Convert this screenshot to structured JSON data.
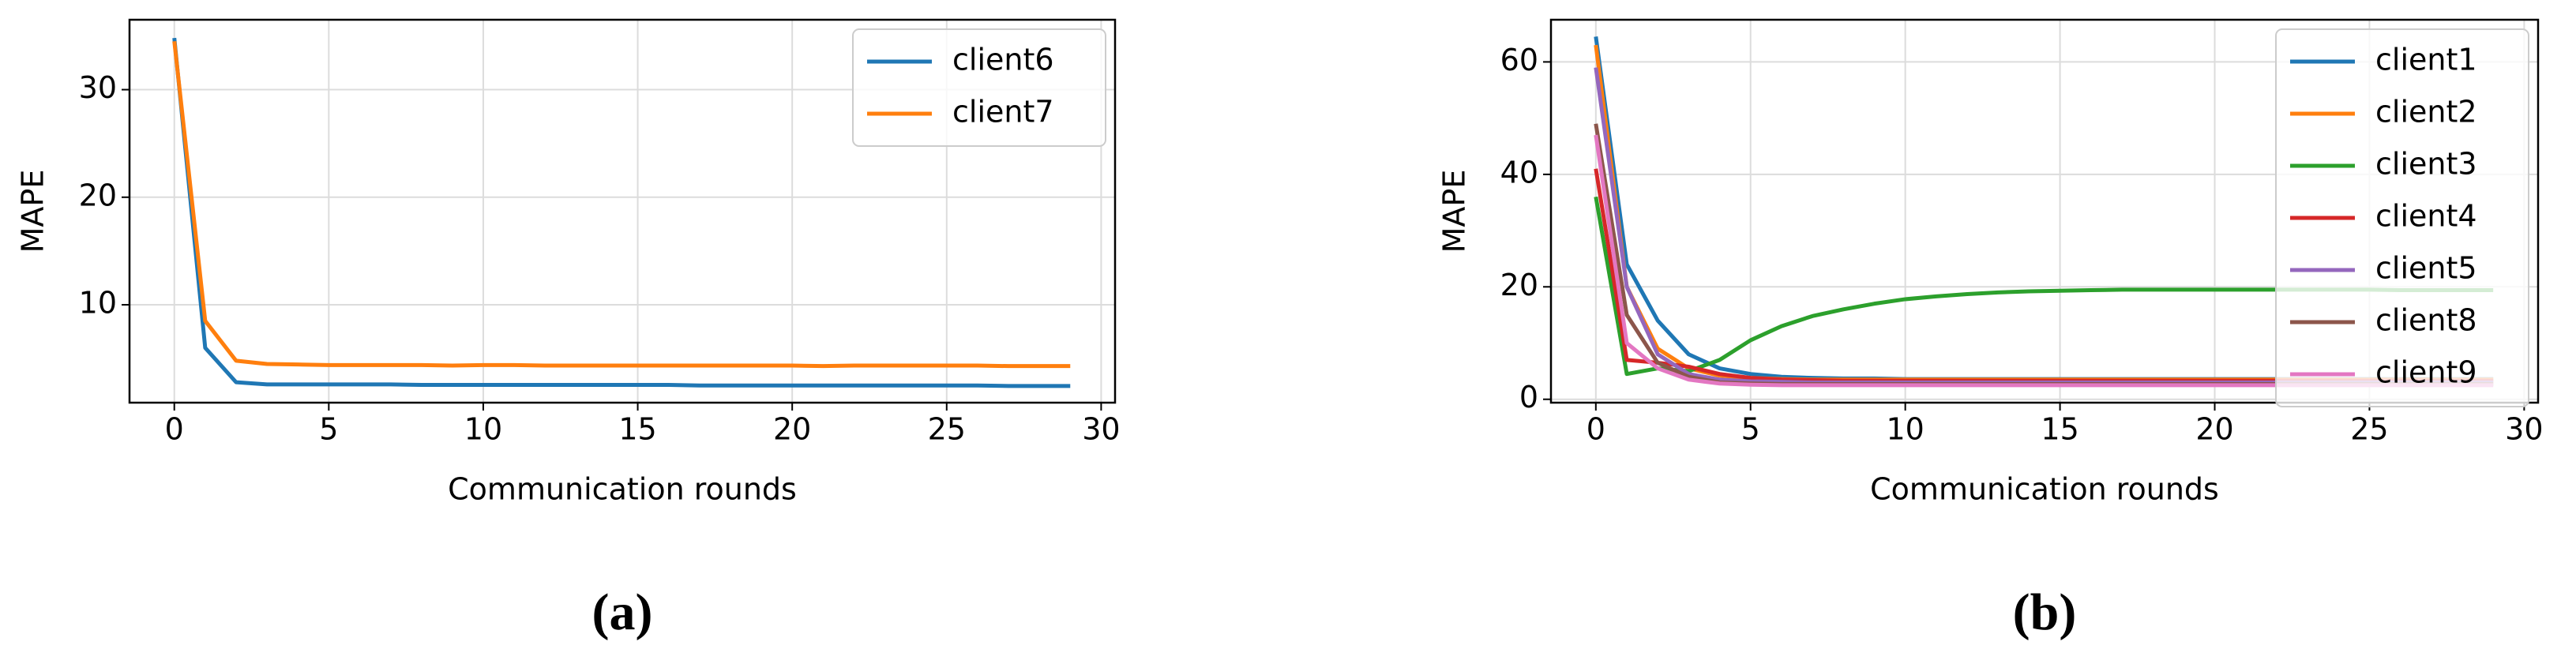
{
  "chart_data": [
    {
      "type": "line",
      "caption": "(a)",
      "xlabel": "Communication rounds",
      "ylabel": "MAPE",
      "x": [
        0,
        1,
        2,
        3,
        4,
        5,
        6,
        7,
        8,
        9,
        10,
        11,
        12,
        13,
        14,
        15,
        16,
        17,
        18,
        19,
        20,
        21,
        22,
        23,
        24,
        25,
        26,
        27,
        28,
        29
      ],
      "series": [
        {
          "name": "client6",
          "color": "#1f77b4",
          "values": [
            34.8,
            6.0,
            2.8,
            2.6,
            2.6,
            2.6,
            2.6,
            2.6,
            2.55,
            2.55,
            2.55,
            2.55,
            2.55,
            2.55,
            2.55,
            2.55,
            2.55,
            2.5,
            2.5,
            2.5,
            2.5,
            2.5,
            2.5,
            2.5,
            2.5,
            2.5,
            2.5,
            2.45,
            2.45,
            2.45
          ]
        },
        {
          "name": "client7",
          "color": "#ff7f0e",
          "values": [
            34.5,
            8.5,
            4.8,
            4.5,
            4.45,
            4.4,
            4.4,
            4.4,
            4.4,
            4.35,
            4.4,
            4.4,
            4.35,
            4.35,
            4.35,
            4.35,
            4.35,
            4.35,
            4.35,
            4.35,
            4.35,
            4.3,
            4.35,
            4.35,
            4.35,
            4.35,
            4.35,
            4.3,
            4.3,
            4.3
          ]
        }
      ],
      "xlim": [
        -1.45,
        30.45
      ],
      "xticks": [
        0,
        5,
        10,
        15,
        20,
        25,
        30
      ],
      "ylim": [
        0.9,
        36.5
      ],
      "yticks": [
        10,
        20,
        30
      ],
      "grid": true,
      "legend": "upper-right"
    },
    {
      "type": "line",
      "caption": "(b)",
      "xlabel": "Communication rounds",
      "ylabel": "MAPE",
      "x": [
        0,
        1,
        2,
        3,
        4,
        5,
        6,
        7,
        8,
        9,
        10,
        11,
        12,
        13,
        14,
        15,
        16,
        17,
        18,
        19,
        20,
        21,
        22,
        23,
        24,
        25,
        26,
        27,
        28,
        29
      ],
      "series": [
        {
          "name": "client1",
          "color": "#1f77b4",
          "values": [
            64.5,
            24,
            14,
            8,
            5.5,
            4.5,
            4,
            3.8,
            3.7,
            3.7,
            3.6,
            3.6,
            3.6,
            3.6,
            3.6,
            3.6,
            3.6,
            3.6,
            3.6,
            3.6,
            3.6,
            3.6,
            3.6,
            3.6,
            3.6,
            3.6,
            3.6,
            3.6,
            3.6,
            3.6
          ]
        },
        {
          "name": "client2",
          "color": "#ff7f0e",
          "values": [
            63,
            20,
            9,
            5.5,
            4.2,
            3.8,
            3.6,
            3.5,
            3.5,
            3.5,
            3.5,
            3.5,
            3.5,
            3.5,
            3.5,
            3.5,
            3.5,
            3.5,
            3.5,
            3.5,
            3.5,
            3.5,
            3.5,
            3.5,
            3.5,
            3.5,
            3.5,
            3.5,
            3.5,
            3.5
          ]
        },
        {
          "name": "client3",
          "color": "#2ca02c",
          "values": [
            36,
            4.5,
            5.5,
            5,
            7,
            10.5,
            13,
            14.8,
            16,
            17,
            17.8,
            18.3,
            18.7,
            19,
            19.2,
            19.3,
            19.4,
            19.5,
            19.5,
            19.5,
            19.5,
            19.5,
            19.5,
            19.5,
            19.5,
            19.5,
            19.4,
            19.4,
            19.4,
            19.4
          ]
        },
        {
          "name": "client4",
          "color": "#d62728",
          "values": [
            41,
            7,
            6.5,
            5.8,
            4.5,
            3.8,
            3.5,
            3.4,
            3.3,
            3.3,
            3.3,
            3.3,
            3.3,
            3.3,
            3.3,
            3.3,
            3.3,
            3.3,
            3.3,
            3.3,
            3.3,
            3.3,
            3.3,
            3.3,
            3.3,
            3.3,
            3.3,
            3.3,
            3.3,
            3.3
          ]
        },
        {
          "name": "client5",
          "color": "#9467bd",
          "values": [
            59,
            20,
            8,
            4.5,
            3.5,
            3.2,
            3.1,
            3,
            3,
            3,
            3,
            3,
            3,
            3,
            3,
            3,
            3,
            3,
            3,
            3,
            3,
            3,
            3,
            3,
            3,
            3,
            3,
            3,
            3,
            3
          ]
        },
        {
          "name": "client8",
          "color": "#8c564b",
          "values": [
            49,
            15,
            6.5,
            4,
            3,
            2.8,
            2.7,
            2.7,
            2.7,
            2.7,
            2.7,
            2.7,
            2.7,
            2.7,
            2.7,
            2.7,
            2.7,
            2.7,
            2.7,
            2.7,
            2.7,
            2.7,
            2.7,
            2.7,
            2.7,
            2.7,
            2.7,
            2.7,
            2.7,
            2.7
          ]
        },
        {
          "name": "client9",
          "color": "#e377c2",
          "values": [
            47,
            10,
            5.5,
            3.5,
            2.8,
            2.6,
            2.5,
            2.5,
            2.5,
            2.5,
            2.5,
            2.5,
            2.5,
            2.5,
            2.5,
            2.5,
            2.5,
            2.5,
            2.5,
            2.5,
            2.5,
            2.5,
            2.5,
            2.5,
            2.5,
            2.5,
            2.5,
            2.5,
            2.5,
            2.5
          ]
        }
      ],
      "xlim": [
        -1.45,
        30.45
      ],
      "xticks": [
        0,
        5,
        10,
        15,
        20,
        25,
        30
      ],
      "ylim": [
        -0.6,
        67.5
      ],
      "yticks": [
        0,
        20,
        40,
        60
      ],
      "grid": true,
      "legend": "upper-right"
    }
  ]
}
